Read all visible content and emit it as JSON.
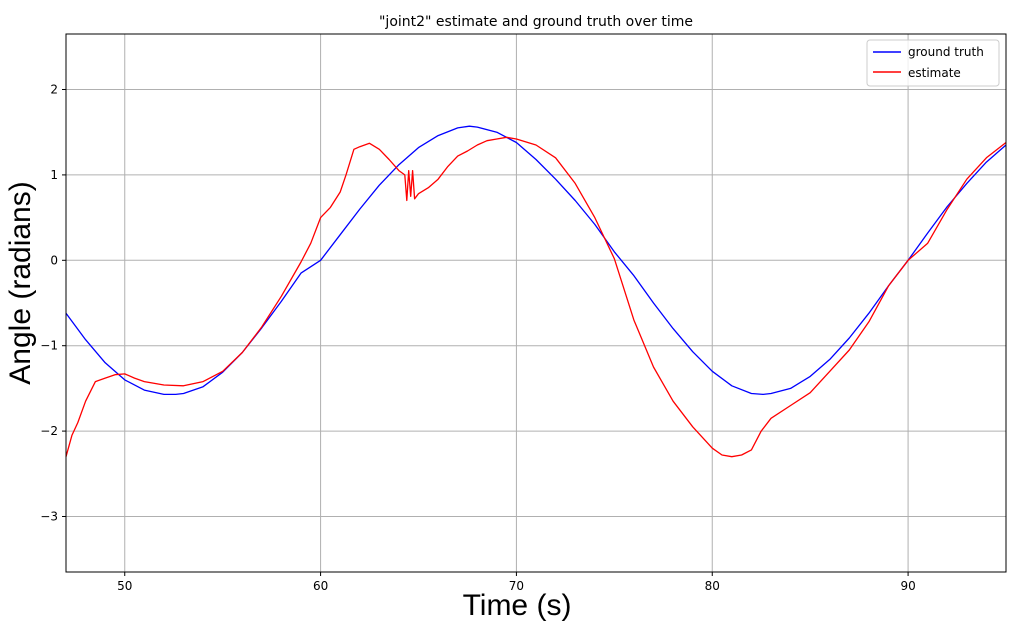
{
  "chart_data": {
    "type": "line",
    "title": "\"joint2\" estimate and ground truth over time",
    "xlabel": "Time (s)",
    "ylabel": "Angle (radians)",
    "xlim": [
      47,
      95
    ],
    "ylim": [
      -3.65,
      2.65
    ],
    "xticks": [
      50,
      60,
      70,
      80,
      90
    ],
    "yticks": [
      2,
      1,
      0,
      -1,
      -2,
      -3
    ],
    "xtick_labels": [
      "50",
      "60",
      "70",
      "80",
      "90"
    ],
    "ytick_labels": [
      "2",
      "1",
      "0",
      "−1",
      "−2",
      "−3"
    ],
    "grid": true,
    "legend_position": "top-right",
    "series": [
      {
        "name": "ground truth",
        "color": "#0000ff",
        "x": [
          47,
          48,
          49,
          50,
          51,
          52,
          52.6,
          53,
          54,
          55,
          56,
          57,
          58,
          59,
          60,
          61,
          62,
          63,
          64,
          65,
          66,
          67,
          67.6,
          68,
          69,
          70,
          71,
          72,
          73,
          74,
          75,
          76,
          77,
          78,
          79,
          80,
          81,
          82,
          82.6,
          83,
          84,
          85,
          86,
          87,
          88,
          89,
          90,
          91,
          92,
          93,
          94,
          95
        ],
        "y": [
          -0.62,
          -0.93,
          -1.2,
          -1.4,
          -1.52,
          -1.57,
          -1.57,
          -1.56,
          -1.48,
          -1.31,
          -1.08,
          -0.79,
          -0.48,
          -0.15,
          0.0,
          0.3,
          0.6,
          0.88,
          1.12,
          1.32,
          1.46,
          1.55,
          1.57,
          1.56,
          1.5,
          1.38,
          1.18,
          0.95,
          0.7,
          0.42,
          0.1,
          -0.18,
          -0.5,
          -0.8,
          -1.07,
          -1.3,
          -1.47,
          -1.56,
          -1.57,
          -1.56,
          -1.5,
          -1.36,
          -1.16,
          -0.91,
          -0.62,
          -0.3,
          0.0,
          0.32,
          0.63,
          0.9,
          1.15,
          1.35
        ]
      },
      {
        "name": "estimate",
        "color": "#ff0000",
        "x": [
          47,
          47.3,
          47.6,
          48,
          48.5,
          49,
          49.5,
          50,
          50.5,
          51,
          52,
          53,
          54,
          55,
          56,
          57,
          58,
          59,
          59.5,
          60,
          60.5,
          61,
          61.3,
          61.7,
          62,
          62.5,
          63,
          63.5,
          64,
          64.3,
          64.4,
          64.5,
          64.6,
          64.7,
          64.8,
          65,
          65.5,
          66,
          66.5,
          67,
          67.5,
          68,
          68.5,
          69,
          69.5,
          70,
          71,
          72,
          73,
          74,
          75,
          76,
          77,
          78,
          79,
          80,
          80.5,
          81,
          81.5,
          82,
          82.5,
          83,
          84,
          85,
          86,
          87,
          88,
          89,
          90,
          91,
          92,
          93,
          94,
          95
        ],
        "y": [
          -2.3,
          -2.05,
          -1.9,
          -1.65,
          -1.42,
          -1.38,
          -1.34,
          -1.33,
          -1.38,
          -1.42,
          -1.46,
          -1.47,
          -1.42,
          -1.3,
          -1.08,
          -0.78,
          -0.42,
          -0.02,
          0.2,
          0.5,
          0.62,
          0.8,
          1.0,
          1.3,
          1.33,
          1.37,
          1.3,
          1.18,
          1.05,
          1.0,
          0.7,
          1.05,
          0.75,
          1.05,
          0.72,
          0.78,
          0.85,
          0.95,
          1.1,
          1.22,
          1.28,
          1.35,
          1.4,
          1.42,
          1.44,
          1.42,
          1.35,
          1.2,
          0.9,
          0.5,
          0.02,
          -0.7,
          -1.25,
          -1.65,
          -1.95,
          -2.2,
          -2.28,
          -2.3,
          -2.28,
          -2.22,
          -2.0,
          -1.85,
          -1.7,
          -1.55,
          -1.3,
          -1.05,
          -0.72,
          -0.3,
          0.0,
          0.2,
          0.6,
          0.95,
          1.2,
          1.38
        ]
      }
    ]
  }
}
